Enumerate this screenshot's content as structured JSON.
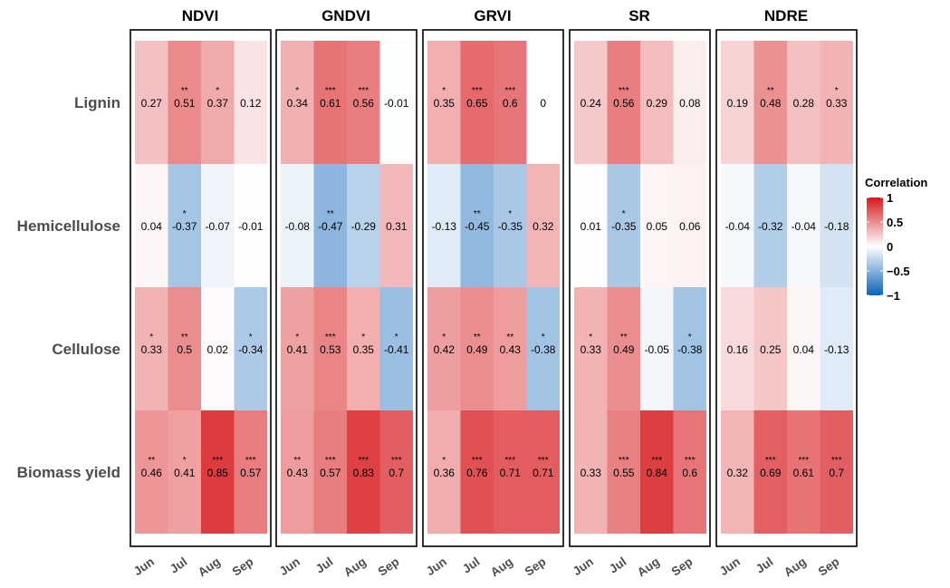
{
  "chart_data": {
    "type": "heatmap",
    "panels": [
      {
        "title": "NDVI",
        "values": [
          [
            0.27,
            0.51,
            0.37,
            0.12
          ],
          [
            0.04,
            -0.37,
            -0.07,
            -0.01
          ],
          [
            0.33,
            0.5,
            0.02,
            -0.34
          ],
          [
            0.46,
            0.41,
            0.85,
            0.57
          ]
        ],
        "labels": [
          [
            "0.27",
            "0.51",
            "0.37",
            "0.12"
          ],
          [
            "0.04",
            "-0.37",
            "-0.07",
            "-0.01"
          ],
          [
            "0.33",
            "0.5",
            "0.02",
            "-0.34"
          ],
          [
            "0.46",
            "0.41",
            "0.85",
            "0.57"
          ]
        ],
        "sig": [
          [
            "",
            "**",
            "*",
            ""
          ],
          [
            "",
            "*",
            "",
            ""
          ],
          [
            "*",
            "**",
            "",
            "*"
          ],
          [
            "**",
            "*",
            "***",
            "***"
          ]
        ]
      },
      {
        "title": "GNDVI",
        "values": [
          [
            0.34,
            0.61,
            0.56,
            -0.01
          ],
          [
            -0.08,
            -0.47,
            -0.29,
            0.31
          ],
          [
            0.41,
            0.53,
            0.35,
            -0.41
          ],
          [
            0.43,
            0.57,
            0.83,
            0.7
          ]
        ],
        "labels": [
          [
            "0.34",
            "0.61",
            "0.56",
            "-0.01"
          ],
          [
            "-0.08",
            "-0.47",
            "-0.29",
            "0.31"
          ],
          [
            "0.41",
            "0.53",
            "0.35",
            "-0.41"
          ],
          [
            "0.43",
            "0.57",
            "0.83",
            "0.7"
          ]
        ],
        "sig": [
          [
            "*",
            "***",
            "***",
            ""
          ],
          [
            "",
            "**",
            "",
            ""
          ],
          [
            "*",
            "***",
            "*",
            "*"
          ],
          [
            "**",
            "***",
            "***",
            "***"
          ]
        ]
      },
      {
        "title": "GRVI",
        "values": [
          [
            0.35,
            0.65,
            0.6,
            0
          ],
          [
            -0.13,
            -0.45,
            -0.35,
            0.32
          ],
          [
            0.42,
            0.49,
            0.43,
            -0.38
          ],
          [
            0.36,
            0.76,
            0.71,
            0.71
          ]
        ],
        "labels": [
          [
            "0.35",
            "0.65",
            "0.6",
            "0"
          ],
          [
            "-0.13",
            "-0.45",
            "-0.35",
            "0.32"
          ],
          [
            "0.42",
            "0.49",
            "0.43",
            "-0.38"
          ],
          [
            "0.36",
            "0.76",
            "0.71",
            "0.71"
          ]
        ],
        "sig": [
          [
            "*",
            "***",
            "***",
            ""
          ],
          [
            "",
            "**",
            "*",
            ""
          ],
          [
            "*",
            "**",
            "**",
            "*"
          ],
          [
            "*",
            "***",
            "***",
            "***"
          ]
        ]
      },
      {
        "title": "SR",
        "values": [
          [
            0.24,
            0.56,
            0.29,
            0.08
          ],
          [
            0.01,
            -0.35,
            0.05,
            0.06
          ],
          [
            0.33,
            0.49,
            -0.05,
            -0.38
          ],
          [
            0.33,
            0.55,
            0.84,
            0.6
          ]
        ],
        "labels": [
          [
            "0.24",
            "0.56",
            "0.29",
            "0.08"
          ],
          [
            "0.01",
            "-0.35",
            "0.05",
            "0.06"
          ],
          [
            "0.33",
            "0.49",
            "-0.05",
            "-0.38"
          ],
          [
            "0.33",
            "0.55",
            "0.84",
            "0.6"
          ]
        ],
        "sig": [
          [
            "",
            "***",
            "",
            ""
          ],
          [
            "",
            "*",
            "",
            ""
          ],
          [
            "*",
            "**",
            "",
            "*"
          ],
          [
            "",
            "***",
            "***",
            "***"
          ]
        ]
      },
      {
        "title": "NDRE",
        "values": [
          [
            0.19,
            0.48,
            0.28,
            0.33
          ],
          [
            -0.04,
            -0.32,
            -0.04,
            -0.18
          ],
          [
            0.16,
            0.25,
            0.04,
            -0.13
          ],
          [
            0.32,
            0.69,
            0.61,
            0.7
          ]
        ],
        "labels": [
          [
            "0.19",
            "0.48",
            "0.28",
            "0.33"
          ],
          [
            "-0.04",
            "-0.32",
            "-0.04",
            "-0.18"
          ],
          [
            "0.16",
            "0.25",
            "0.04",
            "-0.13"
          ],
          [
            "0.32",
            "0.69",
            "0.61",
            "0.7"
          ]
        ],
        "sig": [
          [
            "",
            "**",
            "",
            "*"
          ],
          [
            "",
            "",
            "",
            ""
          ],
          [
            "",
            "",
            "",
            ""
          ],
          [
            "",
            "***",
            "***",
            "***"
          ]
        ]
      }
    ],
    "rows": [
      "Lignin",
      "Hemicellulose",
      "Cellulose",
      "Biomass yield"
    ],
    "columns": [
      "Jun",
      "Jul",
      "Aug",
      "Sep"
    ],
    "legend": {
      "title": "Correlation",
      "ticks": [
        {
          "value": 1,
          "label": "1"
        },
        {
          "value": 0.5,
          "label": "0.5"
        },
        {
          "value": 0,
          "label": "0"
        },
        {
          "value": -0.5,
          "label": "−0.5"
        },
        {
          "value": -1,
          "label": "−1"
        }
      ],
      "range": [
        -1,
        1
      ],
      "placement": "right"
    },
    "colors": {
      "high": "#d7191c",
      "mid": "#ffffff",
      "low": "#0b63b8"
    }
  }
}
